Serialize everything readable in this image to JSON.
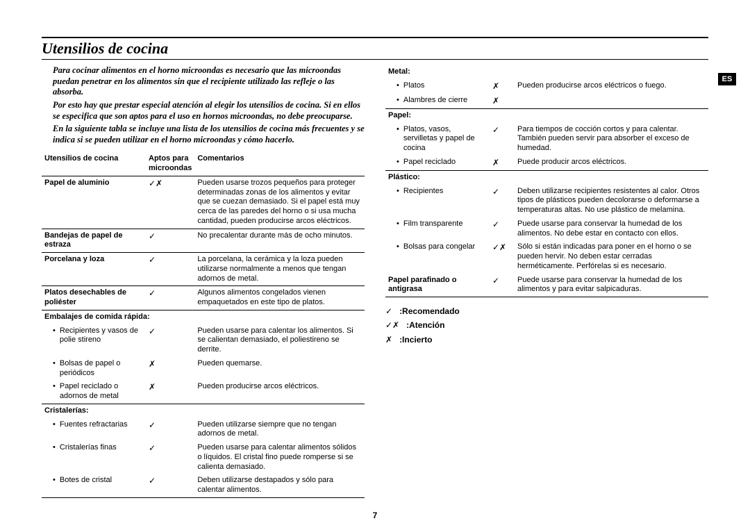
{
  "page_number": "7",
  "lang_tab": "ES",
  "title": "Utensilios de cocina",
  "intro": [
    "Para cocinar alimentos en el horno microondas es necesario que las microondas puedan penetrar en los alimentos sin que el recipiente utilizado las refleje o las absorba.",
    "Por esto hay que prestar especial atención al elegir los utensilios de cocina. Si en ellos se especifica que son aptos para el uso en hornos microondas, no debe preocuparse.",
    "En la siguiente tabla se incluye una lista de los utensilios de cocina más frecuentes y se indica si se pueden utilizar en el horno microondas y cómo hacerlo."
  ],
  "icons": {
    "yes": "✓",
    "no": "✗",
    "caution": "✓✗"
  },
  "headers": {
    "item": "Utensilios de cocina",
    "fit": "Aptos para microondas",
    "comments": "Comentarios"
  },
  "left_rows": [
    {
      "type": "row",
      "item": "Papel de aluminio",
      "icon": "caution",
      "comment": "Pueden usarse trozos pequeños para proteger determinadas zonas de los alimentos y evitar que se cuezan demasiado. Si el papel está muy cerca de las paredes del horno o si usa mucha cantidad, pueden producirse arcos eléctricos.",
      "bold": true
    },
    {
      "type": "row",
      "item": "Bandejas de papel de estraza",
      "icon": "yes",
      "comment": "No precalentar durante más de ocho minutos.",
      "bold": true
    },
    {
      "type": "row",
      "item": "Porcelana y loza",
      "icon": "yes",
      "comment": "La porcelana, la cerámica y la loza pueden utilizarse normalmente a menos que tengan adornos de metal.",
      "bold": true
    },
    {
      "type": "row",
      "item": "Platos desechables de poliéster",
      "icon": "yes",
      "comment": "Algunos alimentos congelados vienen empaquetados en este tipo de platos.",
      "bold": true
    },
    {
      "type": "cat",
      "item": "Embalajes de comida rápida:"
    },
    {
      "type": "sub",
      "item": "Recipientes y vasos de polie stireno",
      "icon": "yes",
      "comment": "Pueden usarse para calentar los alimentos. Si se calientan demasiado, el poliestireno se derrite."
    },
    {
      "type": "sub",
      "item": "Bolsas de papel o periódicos",
      "icon": "no",
      "comment": "Pueden quemarse."
    },
    {
      "type": "sub",
      "item": "Papel reciclado o adornos de metal",
      "icon": "no",
      "comment": "Pueden producirse arcos eléctricos."
    },
    {
      "type": "cat",
      "item": "Cristalerías:"
    },
    {
      "type": "sub",
      "item": "Fuentes refractarias",
      "icon": "yes",
      "comment": "Pueden utilizarse siempre que no tengan adornos de metal."
    },
    {
      "type": "sub",
      "item": "Cristalerías finas",
      "icon": "yes",
      "comment": "Pueden usarse para calentar alimentos sólidos o líquidos. El cristal fino puede romperse si se calienta demasiado."
    },
    {
      "type": "sub",
      "item": "Botes de cristal",
      "icon": "yes",
      "comment": "Deben utilizarse destapados y sólo para calentar alimentos."
    }
  ],
  "right_rows": [
    {
      "type": "cat",
      "item": "Metal:"
    },
    {
      "type": "sub",
      "item": "Platos",
      "icon": "no",
      "comment": "Pueden producirse arcos eléctricos o fuego."
    },
    {
      "type": "sub",
      "item": "Alambres de cierre",
      "icon": "no",
      "comment": ""
    },
    {
      "type": "cat",
      "item": "Papel:"
    },
    {
      "type": "sub",
      "item": "Platos, vasos, servilletas y papel de cocina",
      "icon": "yes",
      "comment": "Para tiempos de cocción cortos y para calentar. También pueden servir para absorber el exceso de humedad."
    },
    {
      "type": "sub",
      "item": "Papel reciclado",
      "icon": "no",
      "comment": "Puede producir arcos eléctricos."
    },
    {
      "type": "cat",
      "item": "Plástico:"
    },
    {
      "type": "sub",
      "item": "Recipientes",
      "icon": "yes",
      "comment": "Deben utilizarse recipientes resistentes al calor. Otros tipos de plásticos pueden decolorarse o deformarse a temperaturas altas. No use plástico de melamina."
    },
    {
      "type": "sub",
      "item": "Film transparente",
      "icon": "yes",
      "comment": "Puede usarse para conservar la humedad de los alimentos. No debe estar en contacto con ellos."
    },
    {
      "type": "sub",
      "item": "Bolsas para congelar",
      "icon": "caution",
      "comment": "Sólo si están indicadas para poner en el horno o se pueden hervir. No deben estar cerradas herméticamente. Perfórelas si es necesario."
    },
    {
      "type": "row",
      "item": "Papel parafinado o antigrasa",
      "icon": "yes",
      "comment": "Puede usarse para conservar la humedad de los alimentos y para evitar salpicaduras.",
      "bold": true
    }
  ],
  "legend": [
    {
      "icon": "yes",
      "label": ":Recomendado"
    },
    {
      "icon": "caution",
      "label": ":Atención"
    },
    {
      "icon": "no",
      "label": ":Incierto"
    }
  ]
}
